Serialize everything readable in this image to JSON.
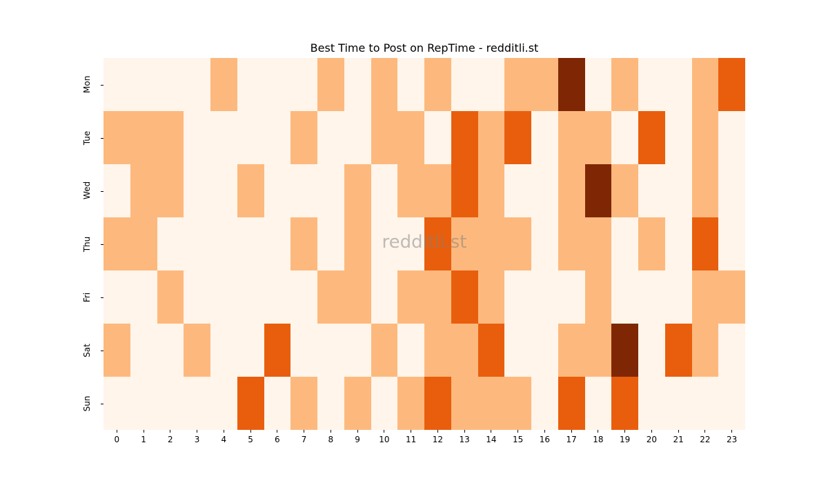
{
  "chart_data": {
    "type": "heatmap",
    "title": "Best Time to Post on RepTime - redditli.st",
    "xlabel": "",
    "ylabel": "",
    "x": [
      "0",
      "1",
      "2",
      "3",
      "4",
      "5",
      "6",
      "7",
      "8",
      "9",
      "10",
      "11",
      "12",
      "13",
      "14",
      "15",
      "16",
      "17",
      "18",
      "19",
      "20",
      "21",
      "22",
      "23"
    ],
    "y": [
      "Mon",
      "Tue",
      "Wed",
      "Thu",
      "Fri",
      "Sat",
      "Sun"
    ],
    "values": [
      [
        0,
        0,
        0,
        0,
        1,
        0,
        0,
        0,
        1,
        0,
        1,
        0,
        1,
        0,
        0,
        1,
        1,
        3,
        0,
        1,
        0,
        0,
        1,
        2
      ],
      [
        1,
        1,
        1,
        0,
        0,
        0,
        0,
        1,
        0,
        0,
        1,
        1,
        0,
        2,
        1,
        2,
        0,
        1,
        1,
        0,
        2,
        0,
        1,
        0
      ],
      [
        0,
        1,
        1,
        0,
        0,
        1,
        0,
        0,
        0,
        1,
        0,
        1,
        1,
        2,
        1,
        0,
        0,
        1,
        3,
        1,
        0,
        0,
        1,
        0
      ],
      [
        1,
        1,
        0,
        0,
        0,
        0,
        0,
        1,
        0,
        1,
        0,
        0,
        2,
        1,
        1,
        1,
        0,
        1,
        1,
        0,
        1,
        0,
        2,
        0
      ],
      [
        0,
        0,
        1,
        0,
        0,
        0,
        0,
        0,
        1,
        1,
        0,
        1,
        1,
        2,
        1,
        0,
        0,
        0,
        1,
        0,
        0,
        0,
        1,
        1
      ],
      [
        1,
        0,
        0,
        1,
        0,
        0,
        2,
        0,
        0,
        0,
        1,
        0,
        1,
        1,
        2,
        0,
        0,
        1,
        1,
        3,
        0,
        2,
        1,
        0
      ],
      [
        0,
        0,
        0,
        0,
        0,
        2,
        0,
        1,
        0,
        1,
        0,
        1,
        2,
        1,
        1,
        1,
        0,
        2,
        0,
        2,
        0,
        0,
        0,
        0
      ]
    ],
    "colormap": "Oranges",
    "color_levels": [
      "#fff5eb",
      "#fdb97d",
      "#e95e0d",
      "#7f2704"
    ],
    "colorbar": false,
    "grid": false
  },
  "watermark": "redditli.st"
}
